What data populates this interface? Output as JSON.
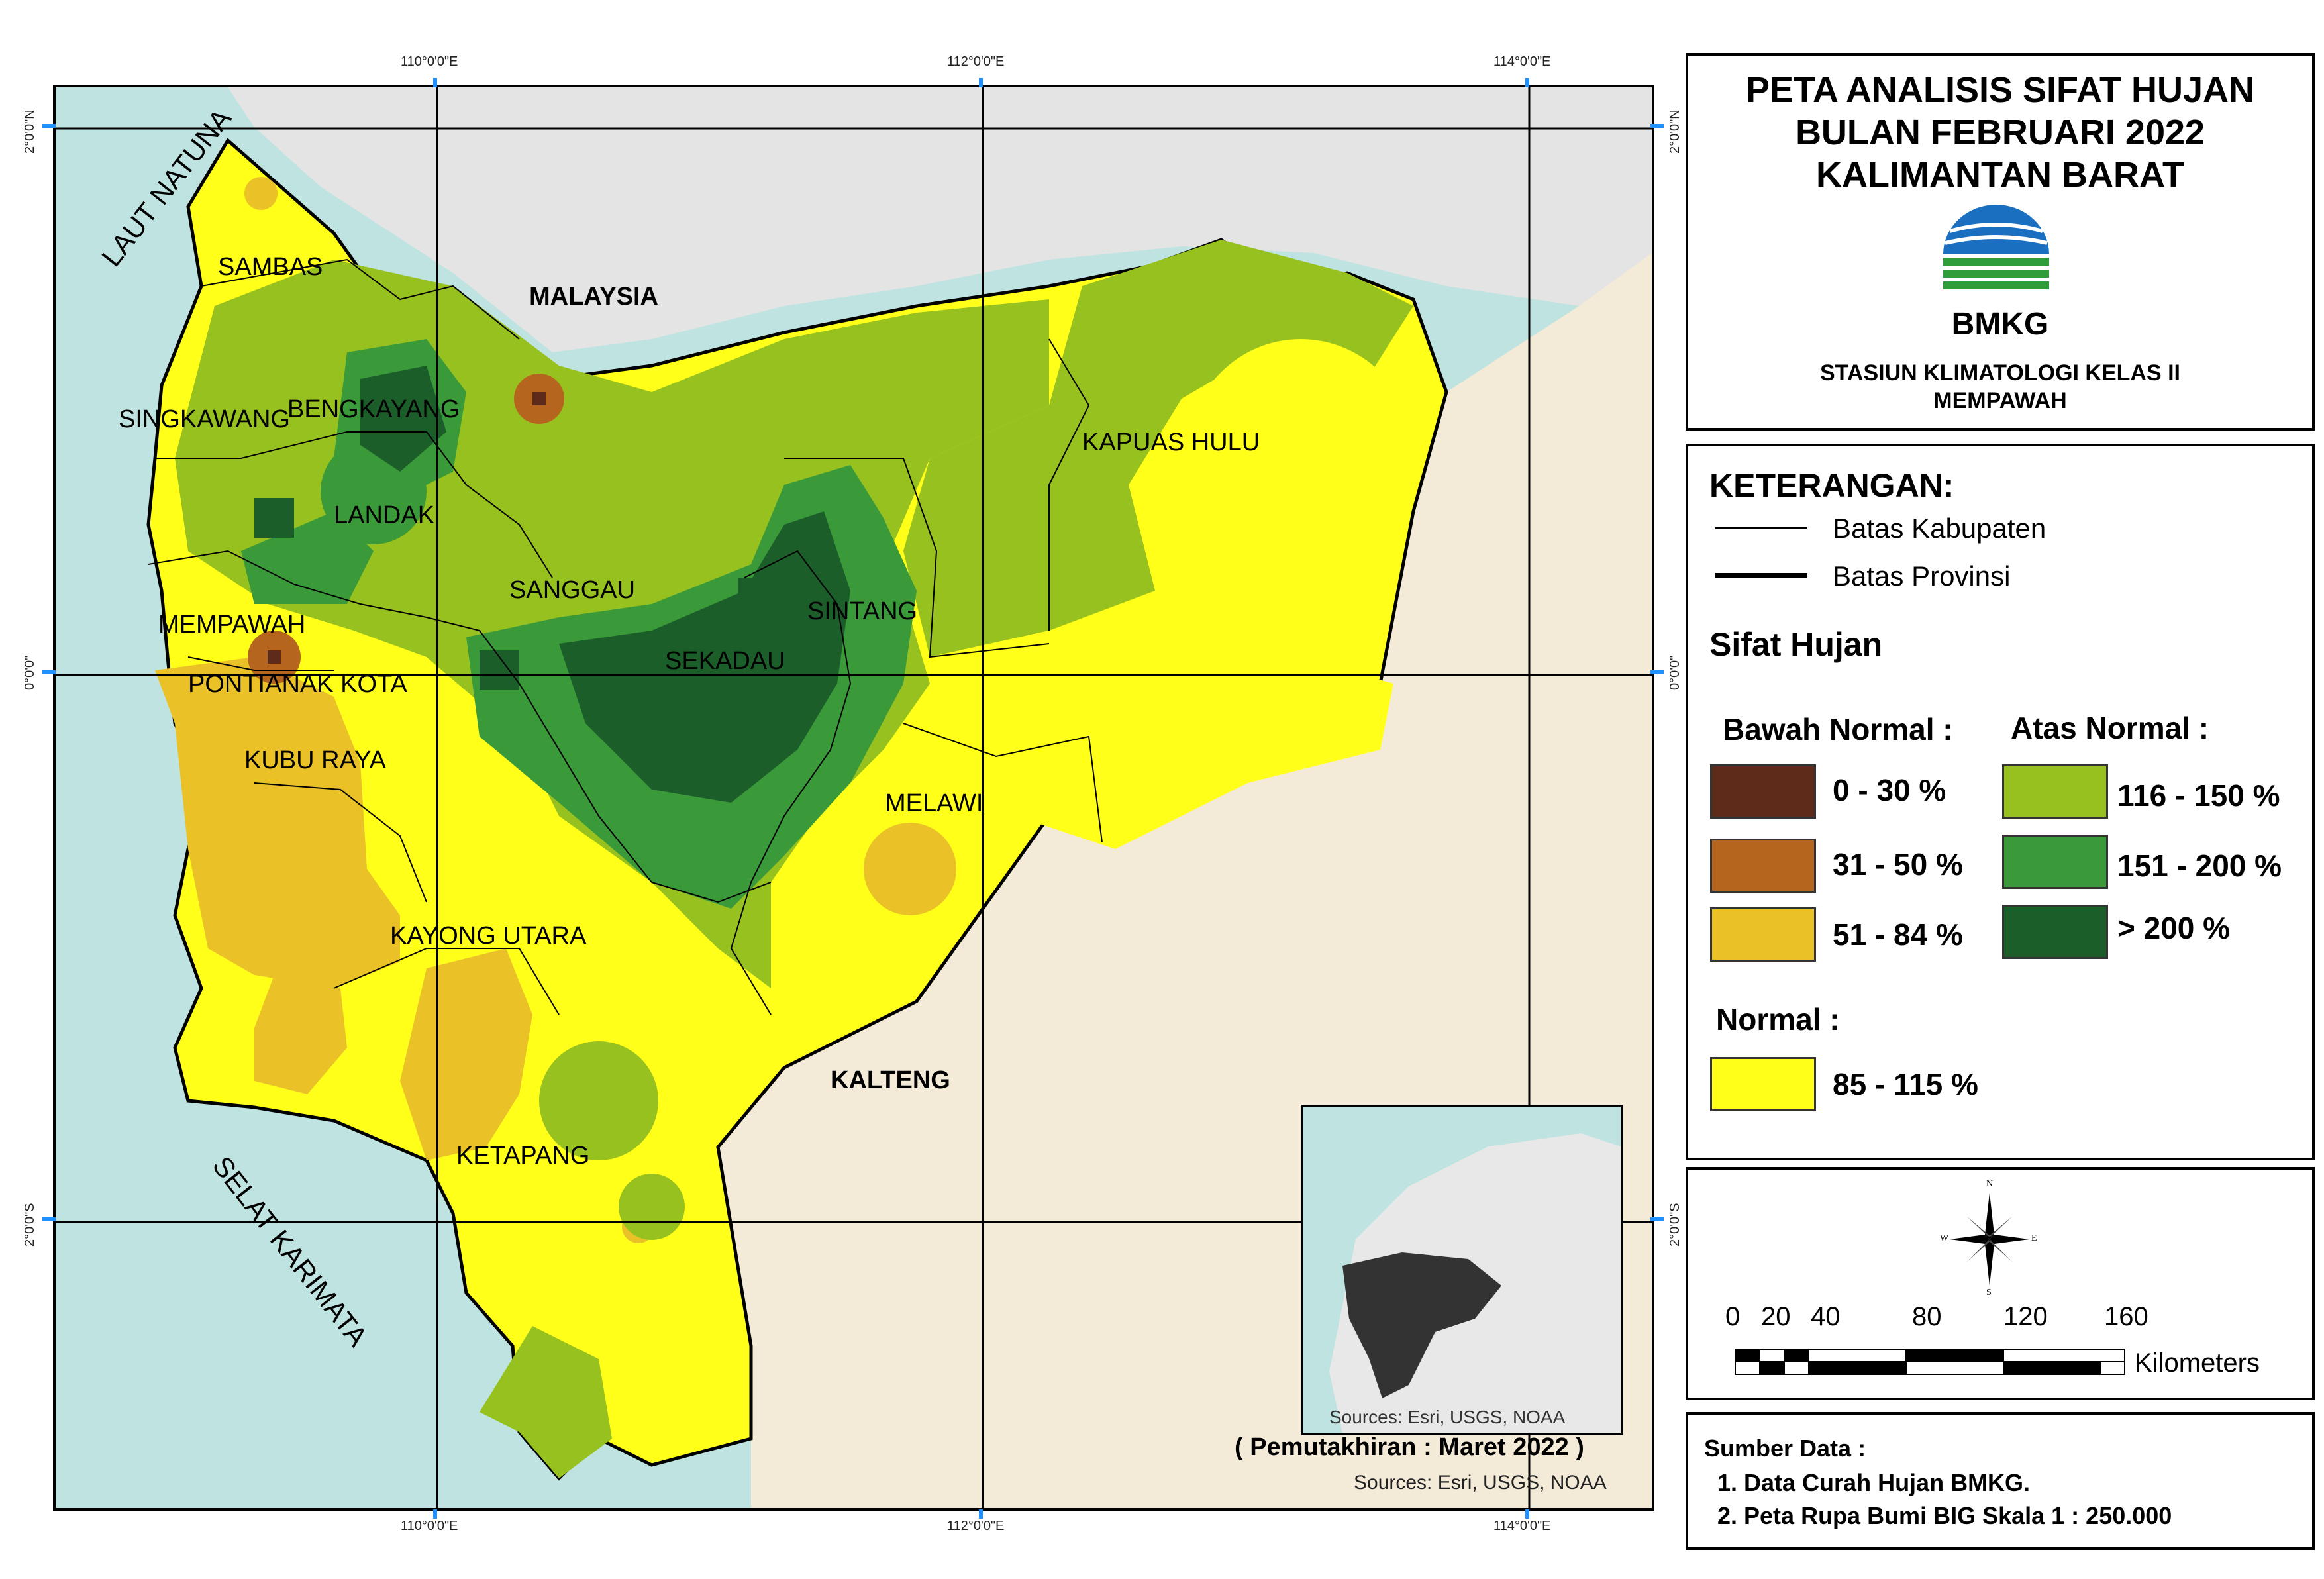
{
  "title": {
    "line1": "PETA ANALISIS SIFAT HUJAN",
    "line2": "BULAN FEBRUARI 2022",
    "line3": "KALIMANTAN BARAT"
  },
  "agency": {
    "logo_text": "BMKG",
    "station_line1": "STASIUN KLIMATOLOGI KELAS II",
    "station_line2": "MEMPAWAH"
  },
  "grid_labels": {
    "lon_110": "110°0'0\"E",
    "lon_112": "112°0'0\"E",
    "lon_114": "114°0'0\"E",
    "lat_2n": "2°0'0\"N",
    "lat_0": "0°0'0\"",
    "lat_2s": "2°0'0\"S"
  },
  "places": {
    "sambas": "SAMBAS",
    "malaysia": "MALAYSIA",
    "singkawang": "SINGKAWANG",
    "bengkayang": "BENGKAYANG",
    "landak": "LANDAK",
    "kapuas_hulu": "KAPUAS HULU",
    "mempawah": "MEMPAWAH",
    "sanggau": "SANGGAU",
    "sintang": "SINTANG",
    "sekadau": "SEKADAU",
    "pontianak_kota": "PONTIANAK KOTA",
    "kubu_raya": "KUBU RAYA",
    "melawi": "MELAWI",
    "kayong_utara": "KAYONG UTARA",
    "kalteng": "KALTENG",
    "ketapang": "KETAPANG"
  },
  "seas": {
    "laut_natuna": "LAUT NATUNA",
    "selat_karimata": "SELAT KARIMATA"
  },
  "map_notes": {
    "update": "( Pemutakhiran : Maret 2022 )",
    "sources": "Sources: Esri, USGS, NOAA",
    "inset_sources": "Sources: Esri, USGS, NOAA"
  },
  "legend": {
    "heading": "KETERANGAN:",
    "line_kabupaten": "Batas Kabupaten",
    "line_provinsi": "Batas Provinsi",
    "sifat_heading": "Sifat Hujan",
    "bawah_heading": "Bawah Normal :",
    "atas_heading": "Atas Normal :",
    "normal_heading": "Normal :",
    "classes": {
      "b1": {
        "label": "0 - 30 %",
        "color": "#5e2a1a"
      },
      "b2": {
        "label": "31 - 50 %",
        "color": "#b5651d"
      },
      "b3": {
        "label": "51 - 84 %",
        "color": "#ebc128"
      },
      "a1": {
        "label": "116 - 150 %",
        "color": "#97c11f"
      },
      "a2": {
        "label": "151 - 200 %",
        "color": "#3a9a3a"
      },
      "a3": {
        "label": "> 200 %",
        "color": "#1c5e2a"
      },
      "n1": {
        "label": "85 - 115 %",
        "color": "#ffff1a"
      }
    }
  },
  "scale_bar": {
    "ticks": [
      "0",
      "20",
      "40",
      "80",
      "120",
      "160"
    ],
    "unit": "Kilometers",
    "compass": {
      "n": "N",
      "s": "S",
      "e": "E",
      "w": "W"
    }
  },
  "sources_panel": {
    "heading": "Sumber Data :",
    "item1": "1. Data Curah Hujan BMKG.",
    "item2": "2. Peta Rupa Bumi BIG Skala 1 : 250.000"
  }
}
